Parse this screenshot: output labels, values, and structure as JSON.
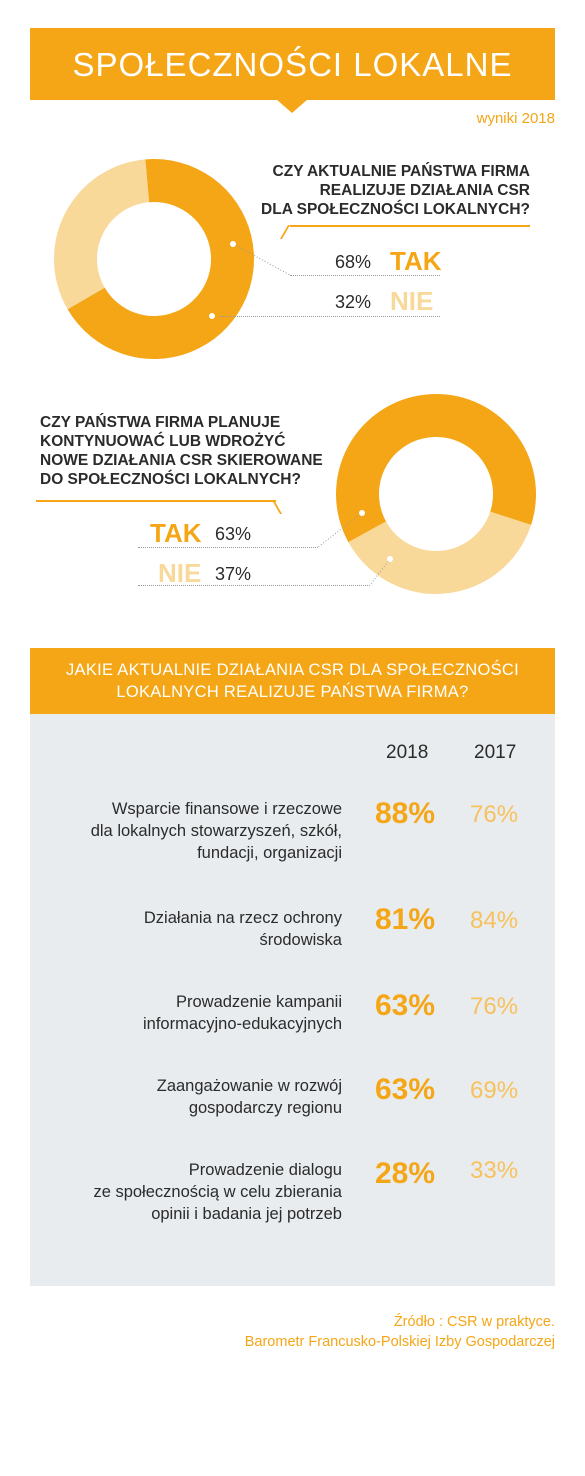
{
  "header": {
    "title": "SPOŁECZNOŚCI LOKALNE",
    "subtitle": "wyniki 2018"
  },
  "colors": {
    "accent": "#F5A616",
    "accent_light": "#F9D99A",
    "panel": "#E8ECEF"
  },
  "q1": {
    "question": [
      "CZY AKTUALNIE PAŃSTWA FIRMA",
      "REALIZUJE DZIAŁANIA CSR",
      "DLA SPOŁECZNOŚCI LOKALNYCH?"
    ],
    "answers": [
      {
        "label": "TAK",
        "pct_text": "68%"
      },
      {
        "label": "NIE",
        "pct_text": "32%"
      }
    ]
  },
  "q2": {
    "question": [
      "CZY PAŃSTWA FIRMA PLANUJE",
      "KONTYNUOWAĆ LUB WDROŻYĆ",
      "NOWE DZIAŁANIA CSR SKIEROWANE",
      "DO SPOŁECZNOŚCI LOKALNYCH?"
    ],
    "answers": [
      {
        "label": "TAK",
        "pct_text": "63%"
      },
      {
        "label": "NIE",
        "pct_text": "37%"
      }
    ]
  },
  "q3": {
    "title": [
      "JAKIE AKTUALNIE DZIAŁANIA CSR DLA SPOŁECZNOŚCI",
      "LOKALNYCH REALIZUJE PAŃSTWA FIRMA?"
    ],
    "col_2018": "2018",
    "col_2017": "2017",
    "rows": [
      {
        "label": [
          "Wsparcie finansowe i rzeczowe",
          "dla lokalnych stowarzyszeń, szkół,",
          "fundacji, organizacji"
        ],
        "v2018": "88%",
        "v2017": "76%"
      },
      {
        "label": [
          "Działania na rzecz ochrony",
          "środowiska"
        ],
        "v2018": "81%",
        "v2017": "84%"
      },
      {
        "label": [
          "Prowadzenie kampanii",
          "informacyjno-edukacyjnych"
        ],
        "v2018": "63%",
        "v2017": "76%"
      },
      {
        "label": [
          "Zaangażowanie w rozwój",
          "gospodarczy regionu"
        ],
        "v2018": "63%",
        "v2017": "69%"
      },
      {
        "label": [
          "Prowadzenie dialogu",
          "ze społecznością w celu zbierania",
          "opinii i badania jej potrzeb"
        ],
        "v2018": "28%",
        "v2017": "33%"
      }
    ]
  },
  "source": [
    "Źródło : CSR w praktyce.",
    "Barometr Francusko-Polskiej Izby Gospodarczej"
  ],
  "chart_data": [
    {
      "type": "pie",
      "title": "CZY AKTUALNIE PAŃSTWA FIRMA REALIZUJE DZIAŁANIA CSR DLA SPOŁECZNOŚCI LOKALNYCH?",
      "categories": [
        "TAK",
        "NIE"
      ],
      "values": [
        68,
        32
      ],
      "colors": [
        "#F5A616",
        "#F9D99A"
      ]
    },
    {
      "type": "pie",
      "title": "CZY PAŃSTWA FIRMA PLANUJE KONTYNUOWAĆ LUB WDROŻYĆ NOWE DZIAŁANIA CSR SKIEROWANE DO SPOŁECZNOŚCI LOKALNYCH?",
      "categories": [
        "TAK",
        "NIE"
      ],
      "values": [
        63,
        37
      ],
      "colors": [
        "#F5A616",
        "#F9D99A"
      ]
    },
    {
      "type": "table",
      "title": "JAKIE AKTUALNIE DZIAŁANIA CSR DLA SPOŁECZNOŚCI LOKALNYCH REALIZUJE PAŃSTWA FIRMA?",
      "categories": [
        "Wsparcie finansowe i rzeczowe dla lokalnych stowarzyszeń, szkół, fundacji, organizacji",
        "Działania na rzecz ochrony środowiska",
        "Prowadzenie kampanii informacyjno-edukacyjnych",
        "Zaangażowanie w rozwój gospodarczy regionu",
        "Prowadzenie dialogu ze społecznością w celu zbierania opinii i badania jej potrzeb"
      ],
      "series": [
        {
          "name": "2018",
          "values": [
            88,
            81,
            63,
            63,
            28
          ]
        },
        {
          "name": "2017",
          "values": [
            76,
            84,
            76,
            69,
            33
          ]
        }
      ]
    }
  ]
}
